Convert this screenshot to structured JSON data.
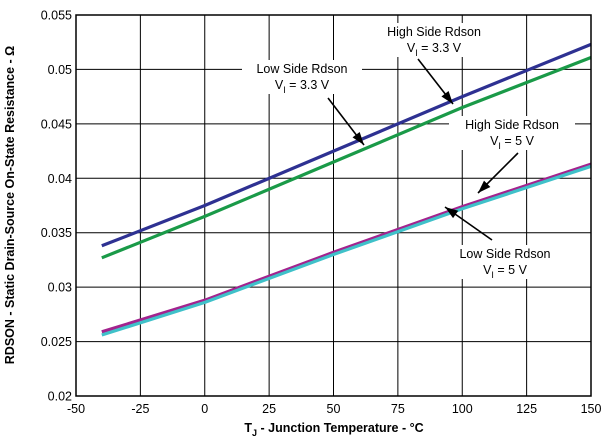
{
  "chart_data": {
    "type": "line",
    "xlabel": {
      "main": "T",
      "sub": "J",
      "rest": " - Junction Temperature - °C"
    },
    "ylabel": "RDSON - Static Drain-Source On-State Resistance - Ω",
    "xlim": [
      -50,
      150
    ],
    "ylim": [
      0.02,
      0.055
    ],
    "x_ticks": [
      -50,
      -25,
      0,
      25,
      50,
      75,
      100,
      125,
      150
    ],
    "x_tick_labels": [
      "-50",
      "-25",
      "0",
      "25",
      "50",
      "75",
      "100",
      "125",
      "150"
    ],
    "y_ticks": [
      0.02,
      0.025,
      0.03,
      0.035,
      0.04,
      0.045,
      0.05,
      0.055
    ],
    "y_tick_labels": [
      "0.02",
      "0.025",
      "0.03",
      "0.035",
      "0.04",
      "0.045",
      "0.05",
      "0.055"
    ],
    "grid": true,
    "series": [
      {
        "name": "High Side Rdson V_I = 3.3 V",
        "color": "#2e3192",
        "x": [
          -40,
          0,
          50,
          100,
          150
        ],
        "y": [
          0.0338,
          0.0375,
          0.0425,
          0.0475,
          0.0523
        ]
      },
      {
        "name": "Low Side Rdson V_I = 3.3 V",
        "color": "#1a9a48",
        "x": [
          -40,
          0,
          50,
          100,
          150
        ],
        "y": [
          0.0327,
          0.0365,
          0.0415,
          0.0465,
          0.0511
        ]
      },
      {
        "name": "High Side Rdson V_I = 5 V",
        "color": "#a3238e",
        "x": [
          -40,
          0,
          50,
          100,
          150
        ],
        "y": [
          0.0259,
          0.0288,
          0.0332,
          0.0374,
          0.0413
        ]
      },
      {
        "name": "Low Side Rdson V_I = 5 V",
        "color": "#3fc1c9",
        "x": [
          -40,
          0,
          50,
          100,
          150
        ],
        "y": [
          0.0256,
          0.0286,
          0.033,
          0.0372,
          0.0411
        ]
      }
    ],
    "annotations": [
      {
        "line1": "High Side Rdson",
        "line2_main": "V",
        "line2_sub": "I",
        "line2_rest": " = 3.3 V"
      },
      {
        "line1": "Low Side Rdson",
        "line2_main": "V",
        "line2_sub": "I",
        "line2_rest": " = 3.3 V"
      },
      {
        "line1": "High Side Rdson",
        "line2_main": "V",
        "line2_sub": "I",
        "line2_rest": " = 5 V"
      },
      {
        "line1": "Low Side Rdson",
        "line2_main": "V",
        "line2_sub": "I",
        "line2_rest": " = 5 V"
      }
    ]
  }
}
